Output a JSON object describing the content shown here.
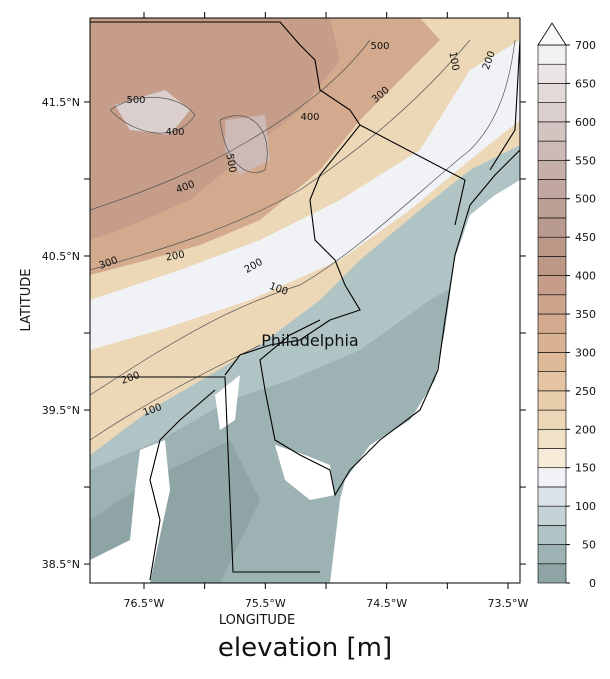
{
  "map": {
    "title": "elevation [m]",
    "xlabel": "LONGITUDE",
    "ylabel": "LATITUDE",
    "place": "Philadelphia",
    "xlim": [
      -76.945,
      -73.401
    ],
    "ylim": [
      38.377,
      42.045
    ],
    "xticks": [
      {
        "value": -76.5,
        "label": "76.5°W"
      },
      {
        "value": -75.5,
        "label": "75.5°W"
      },
      {
        "value": -74.5,
        "label": "74.5°W"
      },
      {
        "value": -73.5,
        "label": "73.5°W"
      }
    ],
    "yticks": [
      {
        "value": 41.5,
        "label": "41.5°N"
      },
      {
        "value": 40.5,
        "label": "40.5°N"
      },
      {
        "value": 39.5,
        "label": "39.5°N"
      },
      {
        "value": 38.5,
        "label": "38.5°N"
      }
    ],
    "contour_labels": [
      "500",
      "100",
      "200",
      "500",
      "300",
      "400",
      "400",
      "500",
      "400",
      "300",
      "200",
      "200",
      "100",
      "200",
      "100"
    ],
    "colorbar": {
      "lim": [
        0,
        700
      ],
      "step": 25,
      "ticks": [
        0,
        50,
        100,
        150,
        200,
        250,
        300,
        350,
        400,
        450,
        500,
        550,
        600,
        650,
        700
      ],
      "colors": [
        "#8fa5a5",
        "#9db3b3",
        "#b0c3c5",
        "#c5d2d6",
        "#dce3ea",
        "#f0f2f6",
        "#f6ecd8",
        "#f1e2c7",
        "#ecd7b7",
        "#e8cdab",
        "#e4c4a2",
        "#deba98",
        "#d9b293",
        "#d3aa8e",
        "#cca38b",
        "#c59d88",
        "#be9886",
        "#bb9787",
        "#b99a8f",
        "#bca095",
        "#c1a79f",
        "#c6afa9",
        "#cdb9b5",
        "#d4c4c1",
        "#dbcfcd",
        "#e3dad9",
        "#ebe6e5",
        "#f3f0f0"
      ],
      "extend_color": "#f8f8f6"
    }
  }
}
